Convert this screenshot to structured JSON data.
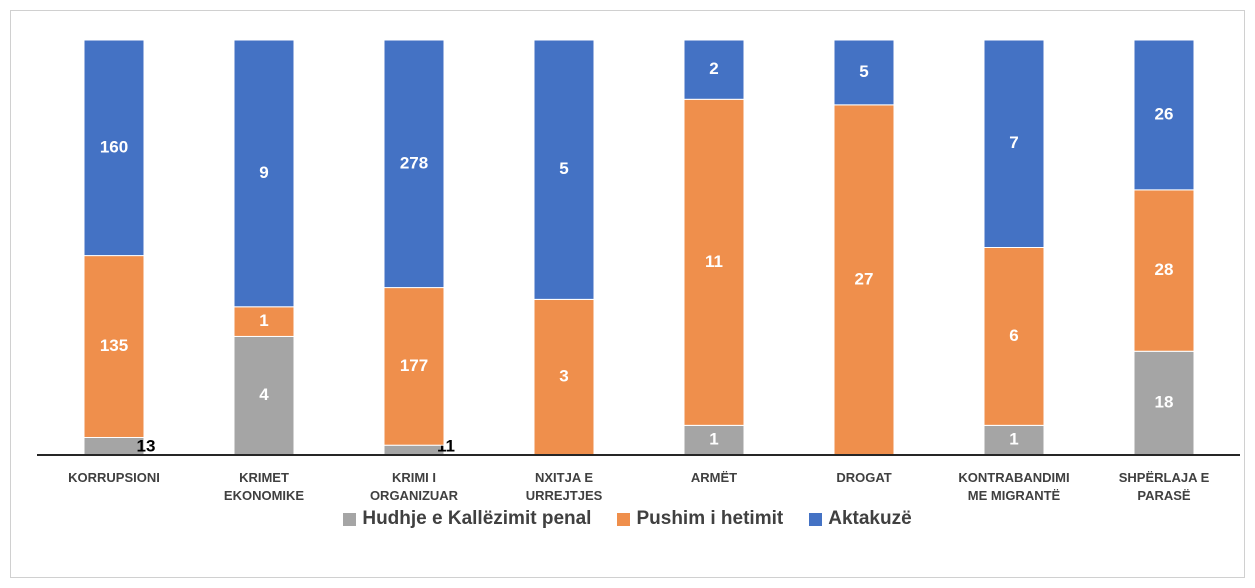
{
  "chart_data": {
    "type": "bar",
    "stacked": "percent",
    "categories": [
      "KORRUPSIONI",
      "KRIMET EKONOMIKE",
      "KRIMI I ORGANIZUAR",
      "NXITJA E URREJTJES",
      "ARMËT",
      "DROGAT",
      "KONTRABANDIMI ME MIGRANTË",
      "SHPËRLAJA E PARASË"
    ],
    "series": [
      {
        "name": "Hudhje e Kallëzimit penal",
        "color": "#a5a5a5",
        "values": [
          13,
          4,
          11,
          0,
          1,
          0,
          1,
          18
        ]
      },
      {
        "name": "Pushim i hetimit",
        "color": "#ef8f4c",
        "values": [
          135,
          1,
          177,
          3,
          11,
          27,
          6,
          28
        ]
      },
      {
        "name": "Aktakuzë",
        "color": "#4472c4",
        "values": [
          160,
          9,
          278,
          5,
          2,
          5,
          7,
          26
        ]
      }
    ],
    "legend": "bottom"
  }
}
